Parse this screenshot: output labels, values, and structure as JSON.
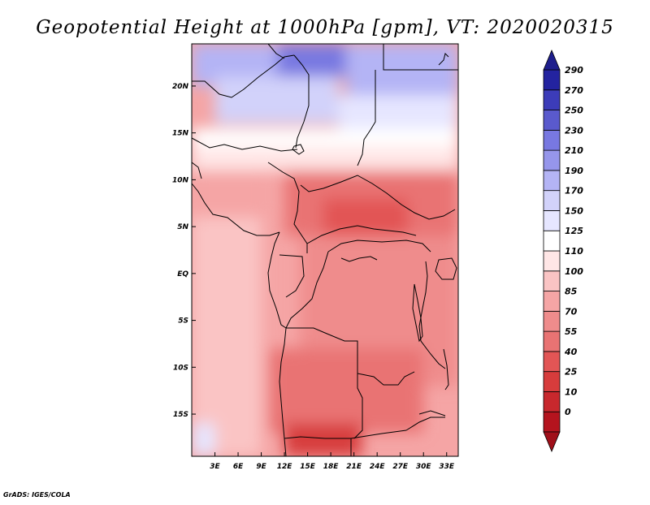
{
  "chart_data": {
    "type": "heatmap",
    "title": "Geopotential Height at 1000hPa [gpm], VT: 2020020315",
    "variable": "Geopotential Height",
    "level": "1000hPa",
    "units": "gpm",
    "valid_time": "2020020315",
    "credit": "GrADS: IGES/COLA",
    "x_axis": {
      "range": [
        0,
        34.5
      ],
      "unit": "degrees longitude",
      "ticks": [
        {
          "value": 3,
          "label": "3E"
        },
        {
          "value": 6,
          "label": "6E"
        },
        {
          "value": 9,
          "label": "9E"
        },
        {
          "value": 12,
          "label": "12E"
        },
        {
          "value": 15,
          "label": "15E"
        },
        {
          "value": 18,
          "label": "18E"
        },
        {
          "value": 21,
          "label": "21E"
        },
        {
          "value": 24,
          "label": "24E"
        },
        {
          "value": 27,
          "label": "27E"
        },
        {
          "value": 30,
          "label": "30E"
        },
        {
          "value": 33,
          "label": "33E"
        }
      ]
    },
    "y_axis": {
      "range": [
        -19.5,
        24.5
      ],
      "unit": "degrees latitude",
      "ticks": [
        {
          "value": 20,
          "label": "20N"
        },
        {
          "value": 15,
          "label": "15N"
        },
        {
          "value": 10,
          "label": "10N"
        },
        {
          "value": 5,
          "label": "5N"
        },
        {
          "value": 0,
          "label": "EQ"
        },
        {
          "value": -5,
          "label": "5S"
        },
        {
          "value": -10,
          "label": "10S"
        },
        {
          "value": -15,
          "label": "15S"
        }
      ]
    },
    "colorbar": {
      "orientation": "vertical",
      "placement": "right",
      "levels": [
        {
          "label": "0",
          "color": "#b4141e"
        },
        {
          "label": "10",
          "color": "#c8282d"
        },
        {
          "label": "25",
          "color": "#d73c3c"
        },
        {
          "label": "40",
          "color": "#e25555"
        },
        {
          "label": "55",
          "color": "#e97373"
        },
        {
          "label": "70",
          "color": "#ef8c8c"
        },
        {
          "label": "85",
          "color": "#f5a5a5"
        },
        {
          "label": "100",
          "color": "#fac4c4"
        },
        {
          "label": "110",
          "color": "#ffe6e6"
        },
        {
          "label": "125",
          "color": "#ffffff"
        },
        {
          "label": "150",
          "color": "#e6e6ff"
        },
        {
          "label": "170",
          "color": "#d2d2fa"
        },
        {
          "label": "190",
          "color": "#b4b4f5"
        },
        {
          "label": "210",
          "color": "#9696eb"
        },
        {
          "label": "230",
          "color": "#7878e1"
        },
        {
          "label": "250",
          "color": "#5a5acd"
        },
        {
          "label": "270",
          "color": "#3c3cb9"
        },
        {
          "label": "290",
          "color": "#2323a0"
        }
      ],
      "low_extend_color": "#a00f19",
      "high_extend_color": "#1e1e8c"
    },
    "field_regions": [
      {
        "name": "far-north-sahara",
        "lon": [
          11,
          20
        ],
        "lat": [
          21,
          24.5
        ],
        "category_label": "230"
      },
      {
        "name": "northwest-sahara",
        "lon": [
          0,
          11
        ],
        "lat": [
          20,
          24.5
        ],
        "category_label": "190"
      },
      {
        "name": "northeast-sahara",
        "lon": [
          20,
          34.5
        ],
        "lat": [
          19,
          24.5
        ],
        "category_label": "190"
      },
      {
        "name": "central-sahara",
        "lon": [
          3,
          19
        ],
        "lat": [
          16,
          21
        ],
        "category_label": "170"
      },
      {
        "name": "eastern-sahara",
        "lon": [
          19,
          34.5
        ],
        "lat": [
          15,
          19
        ],
        "category_label": "150"
      },
      {
        "name": "sahel-transition",
        "lon": [
          0,
          34.5
        ],
        "lat": [
          13.5,
          15.5
        ],
        "category_label": "125"
      },
      {
        "name": "sahel",
        "lon": [
          0,
          34.5
        ],
        "lat": [
          11,
          13.5
        ],
        "category_label": "110"
      },
      {
        "name": "west-africa-coast",
        "lon": [
          0,
          10
        ],
        "lat": [
          6,
          11
        ],
        "category_label": "85"
      },
      {
        "name": "chad-sudan-basin",
        "lon": [
          12,
          34.5
        ],
        "lat": [
          4,
          11
        ],
        "category_label": "55"
      },
      {
        "name": "central-african-republic",
        "lon": [
          17,
          28
        ],
        "lat": [
          4,
          8
        ],
        "category_label": "40"
      },
      {
        "name": "gulf-of-guinea-ocean",
        "lon": [
          0,
          9
        ],
        "lat": [
          -19.5,
          6
        ],
        "category_label": "100"
      },
      {
        "name": "congo-basin",
        "lon": [
          14,
          34.5
        ],
        "lat": [
          -12,
          4
        ],
        "category_label": "70"
      },
      {
        "name": "angola-zambia",
        "lon": [
          10,
          30
        ],
        "lat": [
          -17,
          -8
        ],
        "category_label": "55"
      },
      {
        "name": "namibia-low",
        "lon": [
          12,
          22
        ],
        "lat": [
          -19.5,
          -16
        ],
        "category_label": "25"
      },
      {
        "name": "southern-ocean-edge",
        "lon": [
          0,
          3
        ],
        "lat": [
          -19.5,
          -16
        ],
        "category_label": "150"
      }
    ]
  }
}
